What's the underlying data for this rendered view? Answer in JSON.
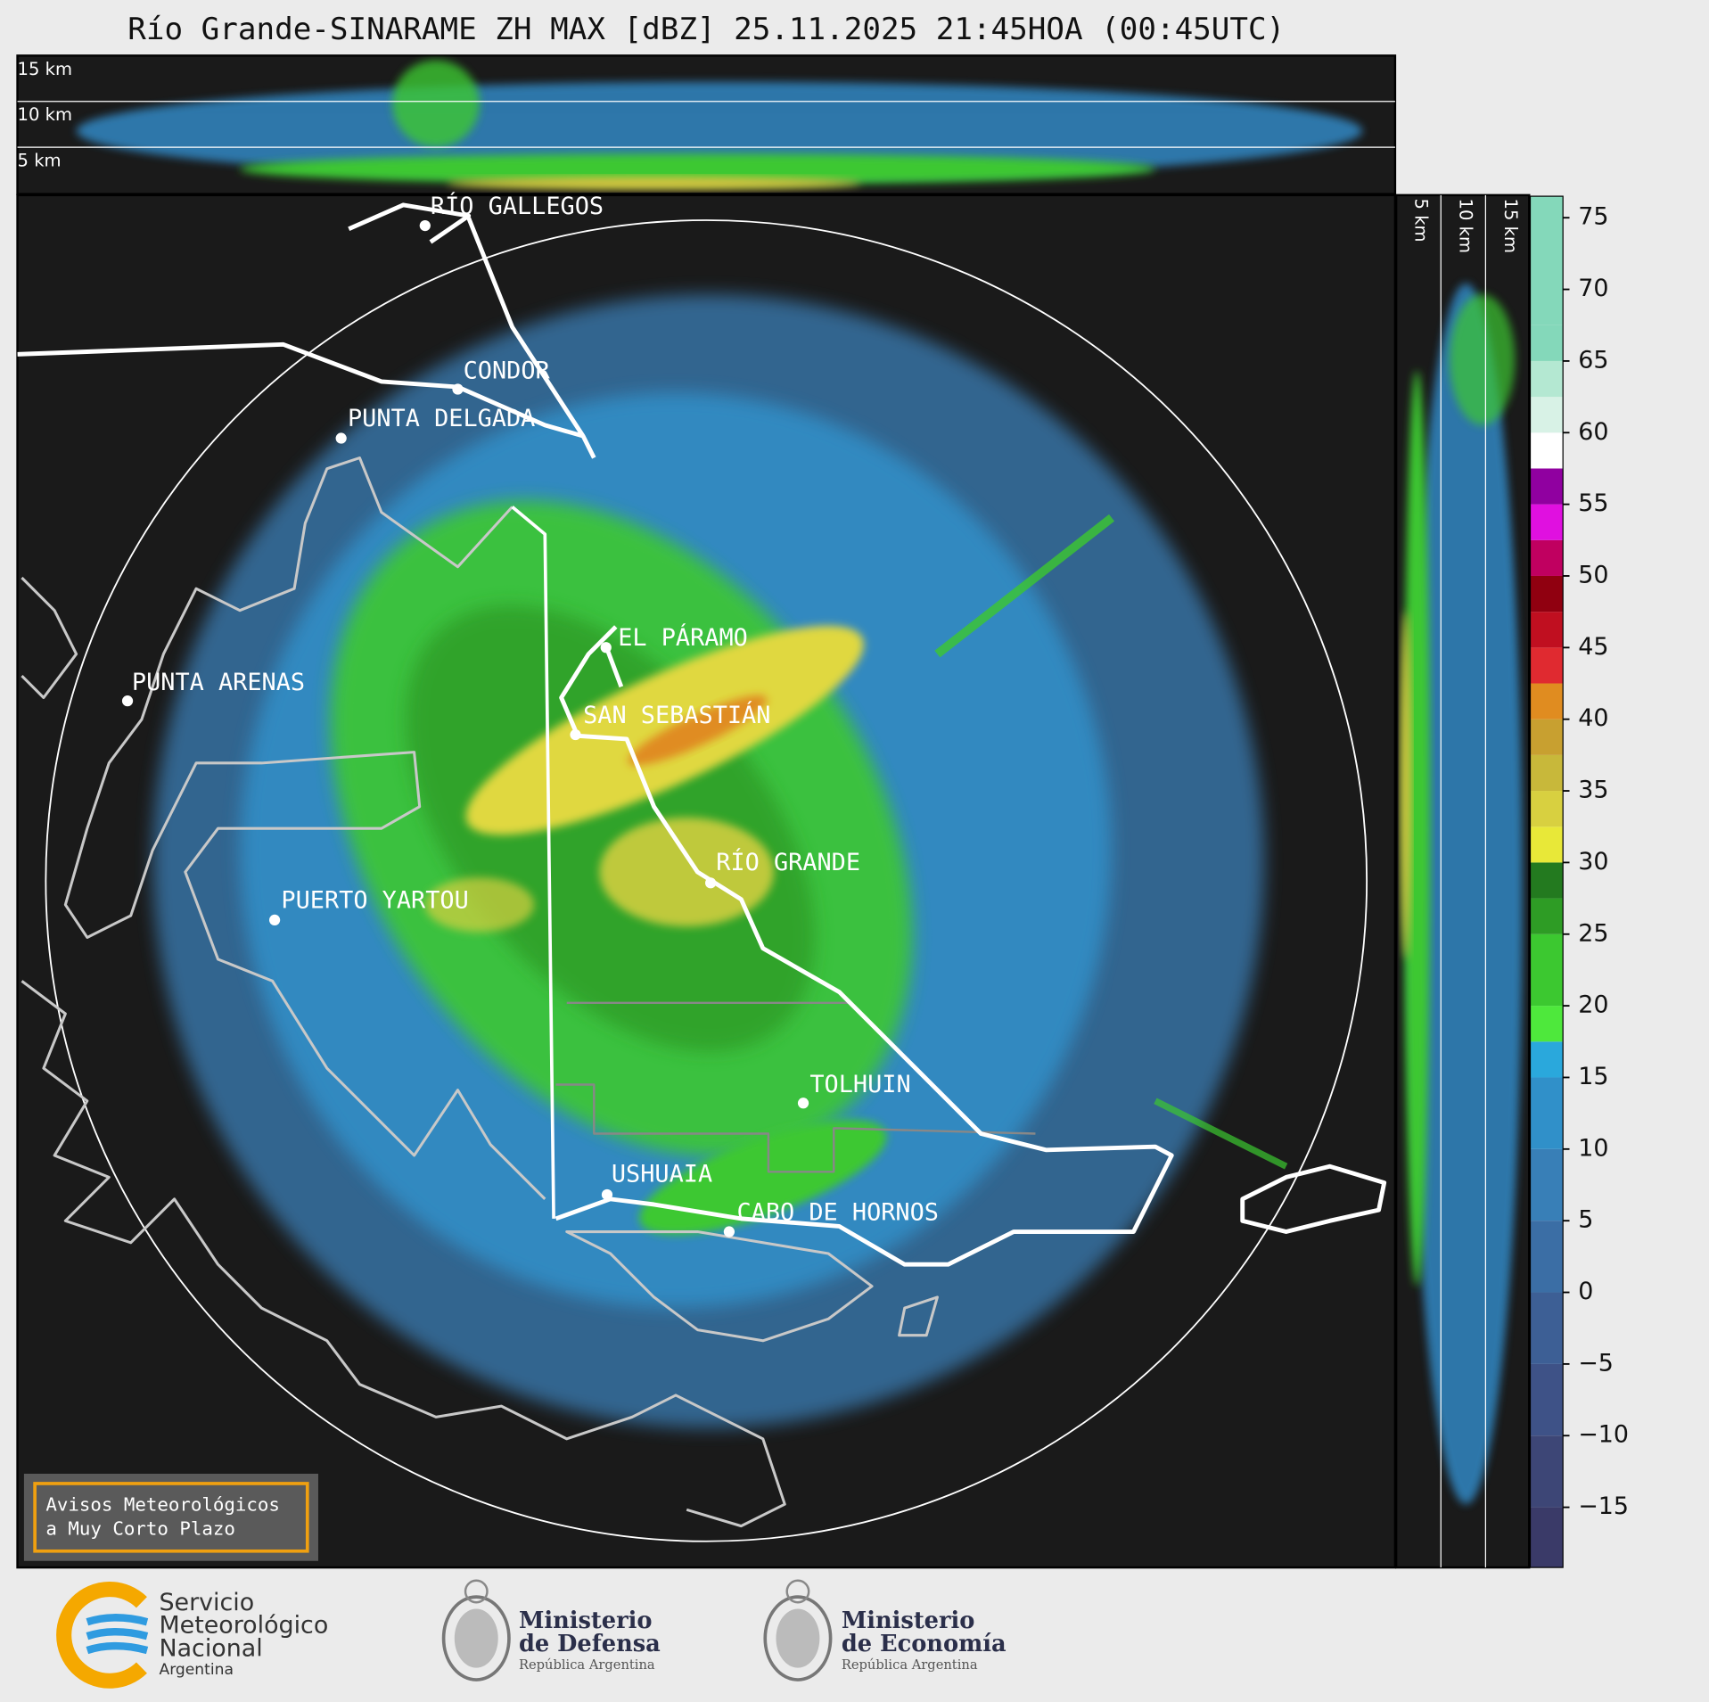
{
  "title": "Río Grande-SINARAME ZH MAX [dBZ] 25.11.2025 21:45HOA (00:45UTC)",
  "cross_section_top": {
    "height_labels": [
      "15 km",
      "10 km",
      "5 km"
    ]
  },
  "cross_section_side": {
    "height_labels": [
      "5 km",
      "10 km",
      "15 km"
    ]
  },
  "map": {
    "places": [
      {
        "name": "RÍO GALLEGOS"
      },
      {
        "name": "CONDOR"
      },
      {
        "name": "PUNTA DELGADA"
      },
      {
        "name": "PUNTA ARENAS"
      },
      {
        "name": "EL PÁRAMO"
      },
      {
        "name": "SAN SEBASTIÁN"
      },
      {
        "name": "RÍO GRANDE"
      },
      {
        "name": "PUERTO YARTOU"
      },
      {
        "name": "TOLHUIN"
      },
      {
        "name": "USHUAIA"
      },
      {
        "name": "CABO DE HORNOS"
      }
    ]
  },
  "colorbar": {
    "lim": [
      -19.2,
      76.5
    ],
    "ticks": [
      75,
      70,
      65,
      60,
      55,
      50,
      45,
      40,
      35,
      30,
      25,
      20,
      15,
      10,
      5,
      0,
      {
        "value": -5,
        "label": "−5"
      },
      {
        "value": -10,
        "label": "−10"
      },
      {
        "value": -15,
        "label": "−15"
      }
    ],
    "levels": [
      -19.2,
      -15,
      -10,
      -5,
      0,
      5,
      10,
      15,
      17.5,
      20,
      25,
      27.5,
      30,
      32.5,
      35,
      37.5,
      40,
      42.5,
      45,
      47.5,
      50,
      52.5,
      55,
      57.5,
      60,
      62.5,
      65,
      67.5,
      76.5
    ],
    "colors": [
      "#3a3a68",
      "#3d4676",
      "#3e5287",
      "#3d5f95",
      "#3b6ea5",
      "#387fb7",
      "#3090c9",
      "#2aa8dc",
      "#4ee83c",
      "#3cc830",
      "#2e9c25",
      "#237a1f",
      "#e8e838",
      "#d8d040",
      "#c8b83a",
      "#c8a030",
      "#e08c20",
      "#e02a30",
      "#c00f20",
      "#900010",
      "#c00060",
      "#e010e0",
      "#9000a0",
      "#ffffff",
      "#d8f2e6",
      "#b4e8d2",
      "#84d8ba",
      "#84d8ba"
    ]
  },
  "notice": {
    "lines": [
      "Avisos Meteorológicos",
      "a Muy Corto Plazo"
    ]
  },
  "footer": {
    "logos": [
      {
        "lines": [
          "Servicio",
          "Meteorológico",
          "Nacional",
          "Argentina"
        ]
      },
      {
        "lines": [
          "Ministerio",
          "de Defensa",
          "República Argentina"
        ]
      },
      {
        "lines": [
          "Ministerio",
          "de Economía",
          "República Argentina"
        ]
      }
    ]
  }
}
